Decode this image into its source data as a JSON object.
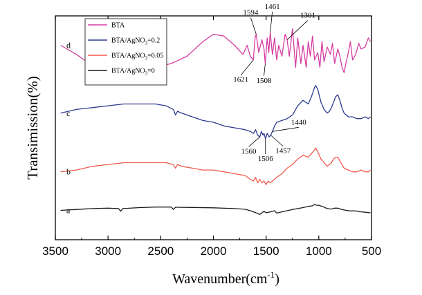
{
  "chart_data": {
    "type": "line",
    "title": "",
    "xlabel": "Wavenumber(cm",
    "xlabel_sup": "-1",
    "xlabel_close": ")",
    "ylabel": "Transimission(%)",
    "xlim": [
      3500,
      500
    ],
    "ylim": [
      0,
      100
    ],
    "x_ticks": [
      3500,
      3000,
      2500,
      2000,
      1500,
      1000,
      500
    ],
    "legend": {
      "placement": "top-left",
      "entries": [
        {
          "series": "d",
          "label": "BTA",
          "sub": "",
          "tail": ""
        },
        {
          "series": "c",
          "label": "BTA/AgNO",
          "sub": "3",
          "tail": "=0.2"
        },
        {
          "series": "b",
          "label": "BTA/AgNO",
          "sub": "3",
          "tail": "=0.05"
        },
        {
          "series": "a",
          "label": "BTA/AgNO",
          "sub": "3",
          "tail": "=0"
        }
      ]
    },
    "series": [
      {
        "name": "d",
        "label": "BTA",
        "color": "#d63ca0",
        "x": [
          3450,
          3300,
          3150,
          3000,
          2850,
          2700,
          2550,
          2400,
          2250,
          2100,
          2000,
          1900,
          1800,
          1720,
          1680,
          1650,
          1621,
          1605,
          1594,
          1570,
          1540,
          1520,
          1508,
          1490,
          1475,
          1461,
          1440,
          1420,
          1400,
          1380,
          1350,
          1320,
          1301,
          1280,
          1250,
          1220,
          1200,
          1170,
          1150,
          1120,
          1100,
          1080,
          1060,
          1040,
          1010,
          990,
          970,
          950,
          920,
          890,
          870,
          850,
          820,
          800,
          780,
          760,
          740,
          720,
          700,
          680,
          650,
          620,
          600,
          560,
          530,
          510
        ],
        "y": [
          84,
          79,
          73,
          72,
          70,
          71,
          72,
          74,
          78,
          86,
          90,
          89,
          84,
          79,
          84,
          78,
          76,
          88,
          90,
          80,
          87,
          82,
          74,
          88,
          80,
          91,
          79,
          88,
          76,
          84,
          78,
          90,
          87,
          78,
          93,
          72,
          88,
          74,
          84,
          72,
          86,
          78,
          89,
          76,
          80,
          72,
          86,
          75,
          83,
          79,
          85,
          74,
          82,
          78,
          72,
          69,
          75,
          80,
          86,
          76,
          79,
          85,
          82,
          83,
          88,
          86
        ]
      },
      {
        "name": "c",
        "label": "BTA/AgNO3=0.2",
        "color": "#2b3990",
        "x": [
          3450,
          3300,
          3150,
          3000,
          2850,
          2700,
          2550,
          2450,
          2380,
          2360,
          2340,
          2300,
          2200,
          2100,
          2000,
          1900,
          1800,
          1700,
          1650,
          1620,
          1600,
          1580,
          1560,
          1545,
          1530,
          1520,
          1506,
          1490,
          1470,
          1457,
          1440,
          1420,
          1400,
          1350,
          1300,
          1250,
          1200,
          1150,
          1100,
          1070,
          1040,
          1030,
          1010,
          980,
          950,
          920,
          900,
          880,
          860,
          840,
          820,
          800,
          780,
          760,
          720,
          680,
          640,
          600,
          560,
          530,
          510
        ],
        "y": [
          47,
          49,
          50,
          51,
          52,
          52,
          52,
          51,
          49,
          46,
          48,
          47,
          45,
          43,
          42,
          40,
          39,
          38,
          37,
          36,
          38,
          35,
          34,
          37,
          35,
          36,
          33,
          36,
          34,
          35,
          37,
          40,
          42,
          43,
          44,
          46,
          51,
          54,
          52,
          56,
          61,
          62,
          60,
          53,
          49,
          47,
          48,
          50,
          53,
          56,
          57,
          54,
          50,
          47,
          45,
          45,
          44,
          44,
          45,
          44,
          45
        ]
      },
      {
        "name": "b",
        "label": "BTA/AgNO3=0.05",
        "color": "#f05a4a",
        "x": [
          3450,
          3300,
          3150,
          3000,
          2850,
          2700,
          2550,
          2450,
          2380,
          2360,
          2340,
          2300,
          2200,
          2100,
          2000,
          1900,
          1800,
          1700,
          1650,
          1620,
          1600,
          1580,
          1560,
          1540,
          1520,
          1500,
          1480,
          1460,
          1440,
          1420,
          1400,
          1350,
          1300,
          1250,
          1200,
          1150,
          1100,
          1070,
          1040,
          1030,
          1010,
          980,
          950,
          920,
          900,
          880,
          860,
          840,
          820,
          800,
          780,
          760,
          720,
          680,
          640,
          600,
          560,
          530,
          510
        ],
        "y": [
          15,
          16,
          18,
          19,
          20,
          20,
          20,
          20,
          19,
          17,
          19,
          18,
          17,
          16,
          16,
          15,
          14,
          13,
          11,
          10,
          12,
          9,
          11,
          9,
          10,
          8,
          10,
          9,
          10,
          11,
          12,
          14,
          17,
          19,
          22,
          24,
          23,
          25,
          27,
          28,
          26,
          22,
          20,
          18,
          19,
          20,
          22,
          23,
          23,
          21,
          19,
          17,
          16,
          15,
          15,
          16,
          15,
          15,
          16
        ]
      },
      {
        "name": "a",
        "label": "BTA/AgNO3=0",
        "color": "#1a1a1a",
        "x": [
          3450,
          3300,
          3150,
          3000,
          2900,
          2880,
          2860,
          2700,
          2550,
          2400,
          2380,
          2360,
          2200,
          2000,
          1800,
          1700,
          1650,
          1600,
          1560,
          1520,
          1500,
          1460,
          1420,
          1400,
          1350,
          1300,
          1250,
          1200,
          1150,
          1100,
          1060,
          1040,
          1020,
          1000,
          960,
          920,
          880,
          850,
          820,
          780,
          740,
          700,
          650,
          600,
          560,
          530,
          510
        ],
        "y": [
          -6,
          -5.5,
          -5,
          -4.8,
          -5,
          -6.5,
          -5,
          -4.5,
          -4.2,
          -4.2,
          -5.5,
          -4.3,
          -4.4,
          -4.6,
          -5,
          -5.4,
          -6.2,
          -7.2,
          -8.2,
          -6.5,
          -7.3,
          -6.8,
          -6.2,
          -7.5,
          -6.8,
          -6.2,
          -5.5,
          -5,
          -4.5,
          -3.8,
          -3.5,
          -2.8,
          -3.2,
          -3.2,
          -4,
          -5,
          -5.3,
          -4.8,
          -4.8,
          -5.5,
          -6,
          -6.3,
          -6.3,
          -6.8,
          -7,
          -7.2,
          -7.3
        ]
      }
    ],
    "curve_labels": [
      {
        "text": "d",
        "series": "d"
      },
      {
        "text": "c",
        "series": "c"
      },
      {
        "text": "b",
        "series": "b"
      },
      {
        "text": "a",
        "series": "a"
      }
    ],
    "annotations": [
      {
        "text": "1594",
        "x": 1594,
        "y": 90
      },
      {
        "text": "1461",
        "x": 1461,
        "y": 91
      },
      {
        "text": "1301",
        "x": 1301,
        "y": 87
      },
      {
        "text": "1621",
        "x": 1621,
        "y": 76
      },
      {
        "text": "1508",
        "x": 1508,
        "y": 74
      },
      {
        "text": "1440",
        "x": 1440,
        "y": 37
      },
      {
        "text": "1560",
        "x": 1560,
        "y": 34
      },
      {
        "text": "1506",
        "x": 1506,
        "y": 33
      },
      {
        "text": "1457",
        "x": 1457,
        "y": 35
      }
    ]
  }
}
